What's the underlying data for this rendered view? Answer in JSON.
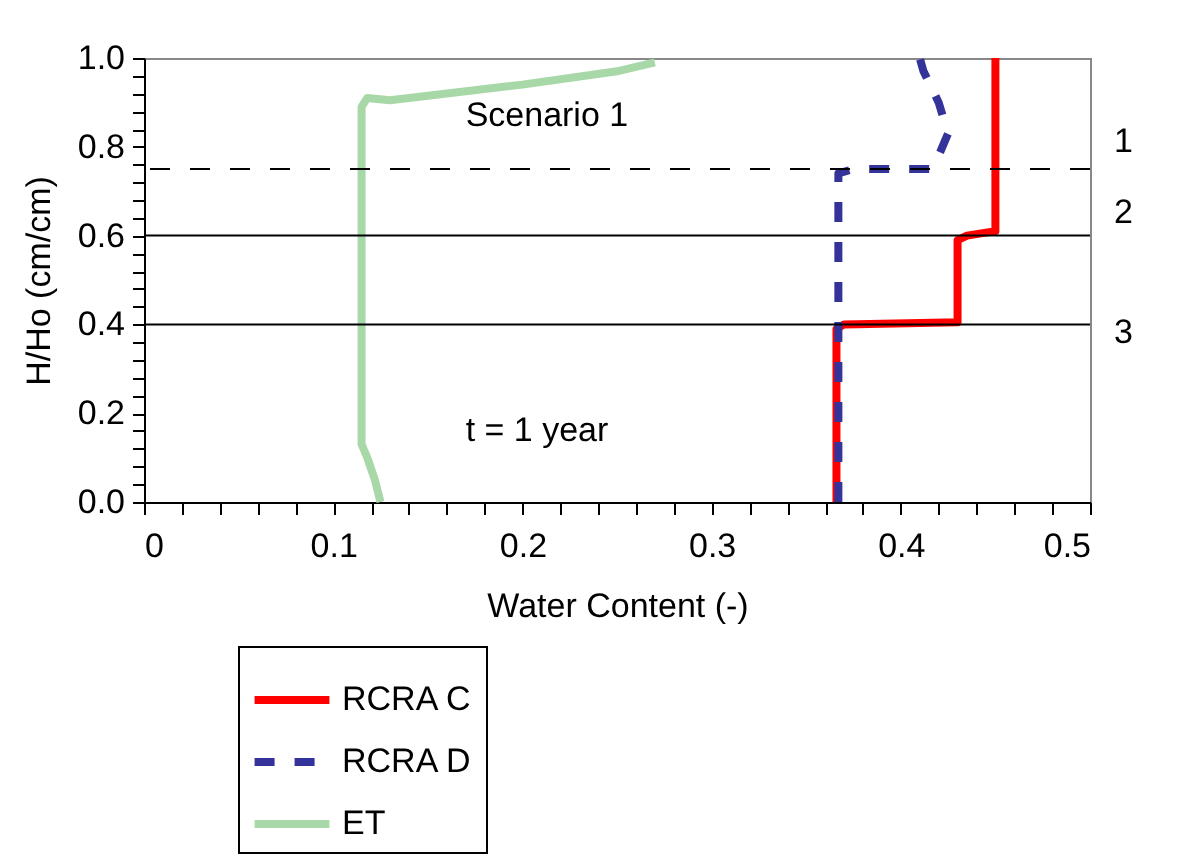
{
  "chart_data": {
    "type": "line",
    "xlabel": "Water Content (-)",
    "ylabel": "H/Ho (cm/cm)",
    "annotations": [
      "Scenario 1",
      "t = 1 year",
      "1",
      "2",
      "3"
    ],
    "series": [
      {
        "name": "RCRA C",
        "color": "#ff0000",
        "line_style": "solid",
        "x": [
          0.366,
          0.366,
          0.37,
          0.43,
          0.43,
          0.435,
          0.45,
          0.45
        ],
        "values": [
          0.0,
          0.39,
          0.4,
          0.405,
          0.59,
          0.6,
          0.61,
          1.0
        ]
      },
      {
        "name": "RCRA D",
        "color": "#333399",
        "line_style": "dashed",
        "x": [
          0.367,
          0.367,
          0.375,
          0.415,
          0.42,
          0.425,
          0.42,
          0.412,
          0.41
        ],
        "values": [
          0.0,
          0.74,
          0.75,
          0.75,
          0.78,
          0.83,
          0.9,
          0.97,
          1.0
        ]
      },
      {
        "name": "ET",
        "color": "#a8d8a8",
        "line_style": "solid",
        "x": [
          0.125,
          0.122,
          0.118,
          0.115,
          0.115,
          0.118,
          0.13,
          0.2,
          0.25,
          0.27
        ],
        "values": [
          0.0,
          0.05,
          0.1,
          0.13,
          0.89,
          0.91,
          0.905,
          0.94,
          0.97,
          0.99
        ]
      }
    ],
    "xlim": [
      0,
      0.5
    ],
    "ylim": [
      0,
      1.0
    ],
    "xticks": [
      0,
      {
        "value": 0.02,
        "label": null
      },
      {
        "value": 0.04,
        "label": null
      },
      {
        "value": 0.06,
        "label": null
      },
      {
        "value": 0.08,
        "label": null
      },
      0.1,
      {
        "value": 0.12,
        "label": null
      },
      {
        "value": 0.14,
        "label": null
      },
      {
        "value": 0.16,
        "label": null
      },
      {
        "value": 0.18,
        "label": null
      },
      0.2,
      {
        "value": 0.22,
        "label": null
      },
      {
        "value": 0.24,
        "label": null
      },
      {
        "value": 0.26,
        "label": null
      },
      {
        "value": 0.28,
        "label": null
      },
      0.3,
      {
        "value": 0.32,
        "label": null
      },
      {
        "value": 0.34,
        "label": null
      },
      {
        "value": 0.36,
        "label": null
      },
      {
        "value": 0.38,
        "label": null
      },
      0.4,
      {
        "value": 0.42,
        "label": null
      },
      {
        "value": 0.44,
        "label": null
      },
      {
        "value": 0.46,
        "label": null
      },
      {
        "value": 0.48,
        "label": null
      },
      0.5
    ],
    "yticks": [
      {
        "value": 0,
        "label": "0.0"
      },
      {
        "value": 0.04,
        "label": null
      },
      {
        "value": 0.08,
        "label": null
      },
      {
        "value": 0.12,
        "label": null
      },
      {
        "value": 0.16,
        "label": null
      },
      0.2,
      {
        "value": 0.24,
        "label": null
      },
      {
        "value": 0.28,
        "label": null
      },
      {
        "value": 0.32,
        "label": null
      },
      {
        "value": 0.36,
        "label": null
      },
      0.4,
      {
        "value": 0.44,
        "label": null
      },
      {
        "value": 0.48,
        "label": null
      },
      {
        "value": 0.52,
        "label": null
      },
      {
        "value": 0.56,
        "label": null
      },
      0.6,
      {
        "value": 0.64,
        "label": null
      },
      {
        "value": 0.68,
        "label": null
      },
      {
        "value": 0.72,
        "label": null
      },
      {
        "value": 0.76,
        "label": null
      },
      0.8,
      {
        "value": 0.84,
        "label": null
      },
      {
        "value": 0.88,
        "label": null
      },
      {
        "value": 0.92,
        "label": null
      },
      {
        "value": 0.96,
        "label": null
      },
      {
        "value": 1.0,
        "label": "1.0"
      }
    ],
    "ref_lines": [
      {
        "axis": "y",
        "value": 0.75,
        "color": "#000000",
        "line_style": "dashed"
      },
      {
        "axis": "y",
        "value": 0.6,
        "color": "#000000",
        "line_style": "solid"
      },
      {
        "axis": "y",
        "value": 0.4,
        "color": "#000000",
        "line_style": "solid"
      }
    ],
    "grid": false,
    "legend": "bottom"
  }
}
